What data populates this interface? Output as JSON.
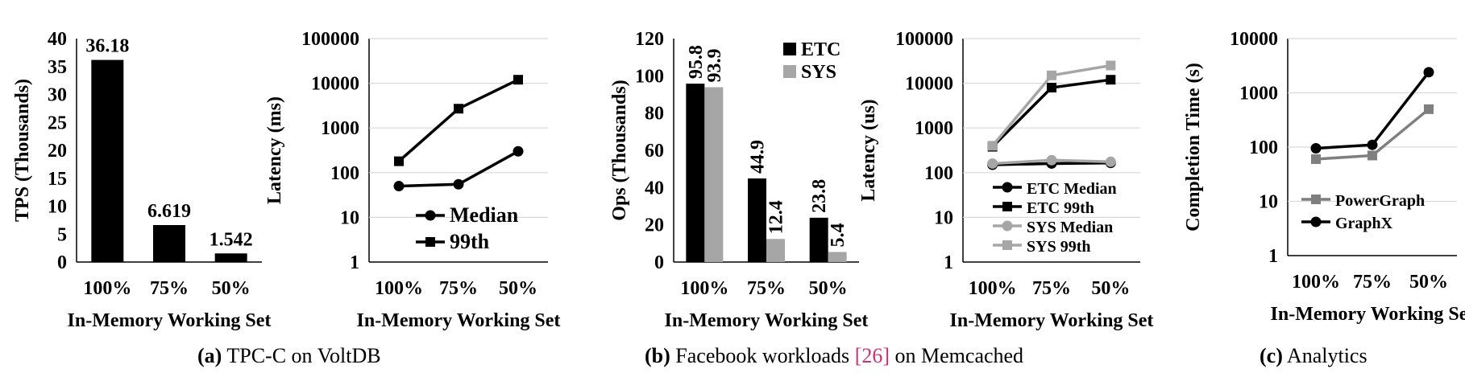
{
  "chart_data": [
    {
      "id": "tpcc-tps",
      "type": "bar",
      "categories": [
        "100%",
        "75%",
        "50%"
      ],
      "values": [
        36.18,
        6.619,
        1.542
      ],
      "data_labels": [
        "36.18",
        "6.619",
        "1.542"
      ],
      "xlabel": "In-Memory Working Set",
      "ylabel": "TPS (Thousands)",
      "ylim": [
        0,
        40
      ],
      "yticks": [
        0,
        5,
        10,
        15,
        20,
        25,
        30,
        35,
        40
      ],
      "colors": [
        "#000000"
      ]
    },
    {
      "id": "tpcc-latency",
      "type": "line",
      "categories": [
        "100%",
        "75%",
        "50%"
      ],
      "yscale": "log",
      "ylim": [
        1,
        100000
      ],
      "yticks": [
        "1",
        "10",
        "100",
        "1000",
        "10000",
        "100000"
      ],
      "xlabel": "In-Memory Working Set",
      "ylabel": "Latency (ms)",
      "legend": "lower-right",
      "series": [
        {
          "name": "Median",
          "values": [
            50,
            55,
            300
          ],
          "color": "#000000",
          "marker": "circle"
        },
        {
          "name": "99th",
          "values": [
            180,
            2700,
            12000
          ],
          "color": "#000000",
          "marker": "square"
        }
      ]
    },
    {
      "id": "memcached-ops",
      "type": "bar",
      "categories": [
        "100%",
        "75%",
        "50%"
      ],
      "ylim": [
        0,
        120
      ],
      "yticks": [
        0,
        20,
        40,
        60,
        80,
        100,
        120
      ],
      "xlabel": "In-Memory Working Set",
      "ylabel": "Ops (Thousands)",
      "legend": "top-right",
      "series": [
        {
          "name": "ETC",
          "values": [
            95.8,
            44.9,
            23.8
          ],
          "labels": [
            "95.8",
            "44.9",
            "23.8"
          ],
          "color": "#000000"
        },
        {
          "name": "SYS",
          "values": [
            93.9,
            12.4,
            5.4
          ],
          "labels": [
            "93.9",
            "12.4",
            "5.4"
          ],
          "color": "#a6a6a6"
        }
      ]
    },
    {
      "id": "memcached-latency",
      "type": "line",
      "categories": [
        "100%",
        "75%",
        "50%"
      ],
      "yscale": "log",
      "ylim": [
        1,
        100000
      ],
      "yticks": [
        "1",
        "10",
        "100",
        "1000",
        "10000",
        "100000"
      ],
      "xlabel": "In-Memory Working Set",
      "ylabel": "Latency (us)",
      "legend": "lower-right",
      "series": [
        {
          "name": "ETC Median",
          "values": [
            150,
            160,
            165
          ],
          "color": "#000000",
          "marker": "circle"
        },
        {
          "name": "ETC 99th",
          "values": [
            380,
            8000,
            12000
          ],
          "color": "#000000",
          "marker": "square"
        },
        {
          "name": "SYS Median",
          "values": [
            160,
            190,
            175
          ],
          "color": "#a6a6a6",
          "marker": "circle"
        },
        {
          "name": "SYS 99th",
          "values": [
            400,
            15000,
            25000
          ],
          "color": "#a6a6a6",
          "marker": "square"
        }
      ]
    },
    {
      "id": "analytics-completion",
      "type": "line",
      "categories": [
        "100%",
        "75%",
        "50%"
      ],
      "yscale": "log",
      "ylim": [
        1,
        10000
      ],
      "yticks": [
        "1",
        "10",
        "100",
        "1000",
        "10000"
      ],
      "xlabel": "In-Memory Working Set",
      "ylabel": "Completion Time (s)",
      "legend": "lower-left",
      "series": [
        {
          "name": "PowerGraph",
          "values": [
            60,
            70,
            500
          ],
          "color": "#7f7f7f",
          "marker": "square"
        },
        {
          "name": "GraphX",
          "values": [
            95,
            110,
            2400
          ],
          "color": "#000000",
          "marker": "circle"
        }
      ]
    }
  ],
  "captions": [
    {
      "letter": "(a)",
      "text": " TPC-C on VoltDB"
    },
    {
      "letter": "(b)",
      "text": " Facebook workloads ",
      "ref": "[26]",
      "text_after": " on Memcached"
    },
    {
      "letter": "(c)",
      "text": " Analytics"
    }
  ]
}
